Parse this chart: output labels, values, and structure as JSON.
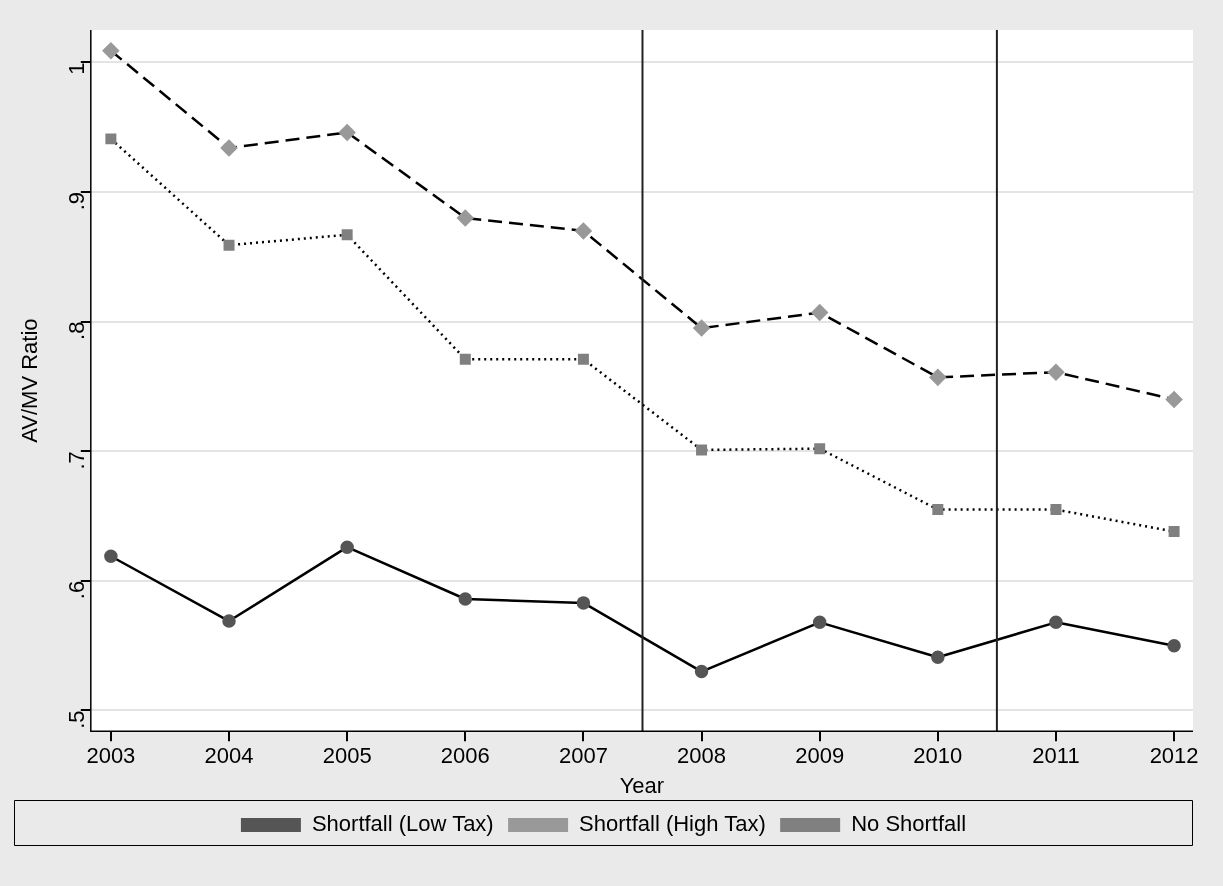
{
  "chart_data": {
    "type": "line",
    "xlabel": "Year",
    "ylabel": "AV/MV Ratio",
    "x": [
      2003,
      2004,
      2005,
      2006,
      2007,
      2008,
      2009,
      2010,
      2011,
      2012
    ],
    "series": [
      {
        "name": "Shortfall (Low Tax)",
        "color": "#555555",
        "marker": "circle",
        "line_style": "solid",
        "values": [
          0.619,
          0.569,
          0.626,
          0.586,
          0.583,
          0.53,
          0.568,
          0.541,
          0.568,
          0.55
        ]
      },
      {
        "name": "Shortfall (High Tax)",
        "color": "#999999",
        "marker": "diamond",
        "line_style": "dashed",
        "values": [
          1.009,
          0.934,
          0.946,
          0.88,
          0.87,
          0.795,
          0.807,
          0.757,
          0.761,
          0.74
        ]
      },
      {
        "name": "No Shortfall",
        "color": "#808080",
        "marker": "square",
        "line_style": "dotted",
        "values": [
          0.941,
          0.859,
          0.867,
          0.771,
          0.771,
          0.701,
          0.702,
          0.655,
          0.655,
          0.638
        ]
      }
    ],
    "xlim": [
      2002.83,
      2012.16
    ],
    "xticks": [
      2003,
      2004,
      2005,
      2006,
      2007,
      2008,
      2009,
      2010,
      2011,
      2012
    ],
    "ylim": [
      0.484,
      1.025
    ],
    "yticks": [
      {
        "value": 0.5,
        "label": ".5"
      },
      {
        "value": 0.6,
        "label": ".6"
      },
      {
        "value": 0.7,
        "label": ".7"
      },
      {
        "value": 0.8,
        "label": ".8"
      },
      {
        "value": 0.9,
        "label": ".9"
      },
      1
    ],
    "ref_lines": [
      {
        "axis": "x",
        "value": 2007.5,
        "color": "#222222"
      },
      {
        "axis": "x",
        "value": 2010.5,
        "color": "#222222"
      }
    ],
    "grid": "y",
    "legend": "bottom"
  }
}
